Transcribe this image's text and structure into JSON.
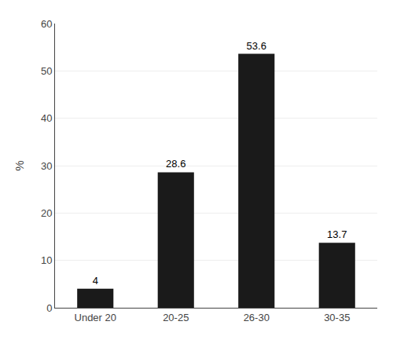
{
  "chart_data": {
    "type": "bar",
    "categories": [
      "Under 20",
      "20-25",
      "26-30",
      "30-35"
    ],
    "values": [
      4,
      28.6,
      53.6,
      13.7
    ],
    "color": "#1a1a1a",
    "ylabel": "%",
    "ylim": [
      0,
      60
    ],
    "yticks": [
      0,
      10,
      20,
      30,
      40,
      50,
      60
    ],
    "grid": true,
    "data_labels": true
  }
}
